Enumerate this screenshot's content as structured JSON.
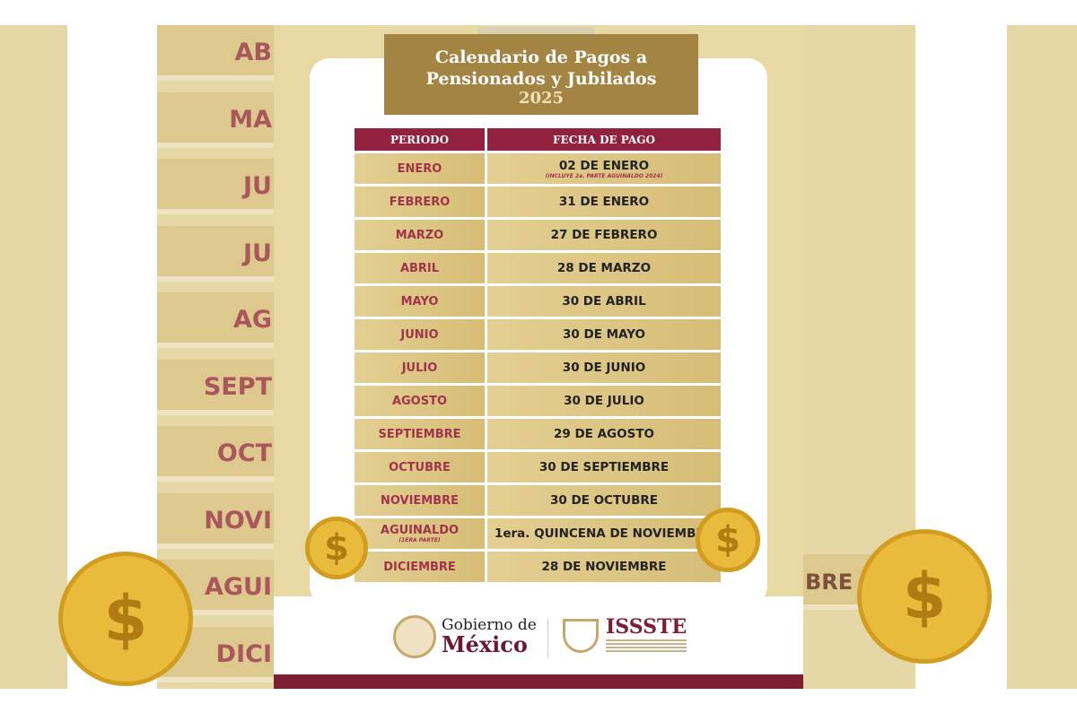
{
  "title": {
    "line1": "Calendario de Pagos a",
    "line2": "Pensionados y Jubilados",
    "year": "2025"
  },
  "table": {
    "headers": [
      "PERIODO",
      "FECHA DE PAGO"
    ],
    "rows": [
      {
        "periodo": "ENERO",
        "fecha": "02 DE ENERO",
        "note": "(INCLUYE 2a. PARTE AGUINALDO 2024)"
      },
      {
        "periodo": "FEBRERO",
        "fecha": "31 DE ENERO"
      },
      {
        "periodo": "MARZO",
        "fecha": "27 DE FEBRERO"
      },
      {
        "periodo": "ABRIL",
        "fecha": "28 DE MARZO"
      },
      {
        "periodo": "MAYO",
        "fecha": "30 DE ABRIL"
      },
      {
        "periodo": "JUNIO",
        "fecha": "30 DE MAYO"
      },
      {
        "periodo": "JULIO",
        "fecha": "30 DE JUNIO"
      },
      {
        "periodo": "AGOSTO",
        "fecha": "30 DE JULIO"
      },
      {
        "periodo": "SEPTIEMBRE",
        "fecha": "29 DE AGOSTO"
      },
      {
        "periodo": "OCTUBRE",
        "fecha": "30 DE SEPTIEMBRE"
      },
      {
        "periodo": "NOVIEMBRE",
        "fecha": "30 DE OCTUBRE"
      },
      {
        "periodo": "AGUINALDO",
        "periodo_note": "(1ERA PARTE)",
        "fecha": "1era. QUINCENA DE NOVIEMBRE"
      },
      {
        "periodo": "DICIEMBRE",
        "fecha": "28 DE NOVIEMBRE"
      }
    ]
  },
  "footer": {
    "gob_line1": "Gobierno de",
    "gob_line2": "México",
    "issste": "ISSSTE"
  },
  "background_fragments": {
    "left": [
      "AB",
      "MA",
      "JU",
      "JU",
      "AG",
      "SEPT",
      "OCT",
      "NOVI",
      "AGUI",
      "DICI"
    ],
    "right": "BRE"
  },
  "colors": {
    "maroon": "#92203f",
    "gold": "#a38443",
    "beige": "#e8d8a4"
  }
}
